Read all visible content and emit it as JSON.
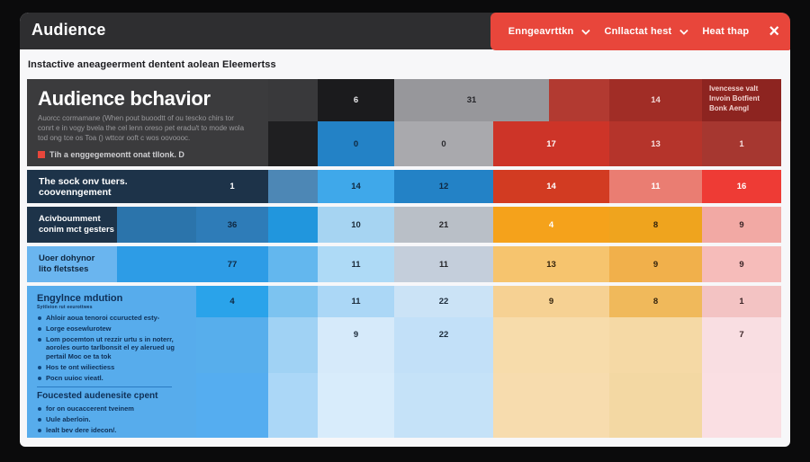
{
  "window": {
    "title": "Audience",
    "close_glyph": "×"
  },
  "toolbar": {
    "accent_red": "#e8463b",
    "buttons": [
      {
        "label": "Enngeavrttkn",
        "has_dropdown": true
      },
      {
        "label": "Cnllactat hest",
        "has_dropdown": true
      },
      {
        "label": "Heat thap",
        "has_dropdown": false
      }
    ]
  },
  "subtitle": "Instactive aneageerment dentent aolean Eleemertss",
  "heatmap": {
    "band1": {
      "panel": {
        "title": "Audience bchavior",
        "body": "Auorcc cormamane (When pout buoodtt of ou tescko chirs tor conrt e in vogy bvela the cel lenn oreso pet eradu/t to mode wola tod ong tce os Toa () wttcor ooft c wos oovoooc.",
        "note": "Tih a enggegemeontt onat tllonk. D"
      },
      "r1": [
        {
          "v": "6",
          "bg": "#1b1b1d",
          "fg": "#e8e8ea"
        },
        {
          "v": "31",
          "bg": "#97979b",
          "fg": "#26262a"
        },
        {
          "v": "",
          "bg": "#b23a31",
          "fg": "#ffffff"
        },
        {
          "v": "14",
          "bg": "#a12d26",
          "fg": "#f2d7d5"
        },
        {
          "v": "Ivencesse valt Invoin Botfient Bonk Aengl",
          "bg": "#8d2420",
          "fg": "#f3d3d0"
        }
      ],
      "r2": [
        {
          "v": "0",
          "bg": "#2382c6",
          "fg": "#10283e"
        },
        {
          "v": "0",
          "bg": "#a9a9ad",
          "fg": "#2a2a2e"
        },
        {
          "v": "17",
          "bg": "#cd3428",
          "fg": "#ffffff"
        },
        {
          "v": "13",
          "bg": "#b5342b",
          "fg": "#f6dedd"
        },
        {
          "v": "1",
          "bg": "#a63730",
          "fg": "#f6dedd"
        }
      ]
    },
    "row2": {
      "label": "The sock onv tuers. coovenngement",
      "label_bg": "#1d3349",
      "label_fg": "#ffffff",
      "cells": [
        {
          "v": "1",
          "bg": "#1d3349",
          "fg": "#ffffff"
        },
        {
          "v": "",
          "bg": "#4d87b5",
          "fg": "#ffffff"
        },
        {
          "v": "14",
          "bg": "#3fa8ea",
          "fg": "#10283e"
        },
        {
          "v": "12",
          "bg": "#2382c6",
          "fg": "#0f2740"
        },
        {
          "v": "14",
          "bg": "#d23b22",
          "fg": "#ffffff"
        },
        {
          "v": "11",
          "bg": "#ea7d72",
          "fg": "#ffffff"
        },
        {
          "v": "16",
          "bg": "#ee3b35",
          "fg": "#ffffff"
        }
      ]
    },
    "row3": {
      "label_line1": "Acivboumment",
      "label_line2": "conim mct gesters",
      "label_bg": "#1d3349",
      "label_fg": "#ffffff",
      "cells": [
        {
          "v": "",
          "bg": "#2b74ab",
          "fg": "#ffffff"
        },
        {
          "v": "36",
          "bg": "#2e7cb8",
          "fg": "#0f2740"
        },
        {
          "v": "",
          "bg": "#2196dd",
          "fg": "#ffffff"
        },
        {
          "v": "10",
          "bg": "#a6d4f2",
          "fg": "#1c2b3a"
        },
        {
          "v": "21",
          "bg": "#b9bfc7",
          "fg": "#26262a"
        },
        {
          "v": "4",
          "bg": "#f5a21b",
          "fg": "#ffffff"
        },
        {
          "v": "8",
          "bg": "#efa41e",
          "fg": "#33230d"
        },
        {
          "v": "9",
          "bg": "#f2a9a4",
          "fg": "#3a2426"
        }
      ]
    },
    "row4": {
      "label_line1": "Uoer dohynor",
      "label_line2": "lito fletstses",
      "label_bg": "#6ab5ef",
      "label_fg": "#0f2740",
      "cells": [
        {
          "v": "",
          "bg": "#2d9ce6",
          "fg": "#ffffff"
        },
        {
          "v": "77",
          "bg": "#2d9ce6",
          "fg": "#0f2740"
        },
        {
          "v": "",
          "bg": "#63b7ee",
          "fg": "#ffffff"
        },
        {
          "v": "11",
          "bg": "#aedaf6",
          "fg": "#1c2b3a"
        },
        {
          "v": "11",
          "bg": "#c4cedb",
          "fg": "#26262a"
        },
        {
          "v": "13",
          "bg": "#f6c46e",
          "fg": "#33230d"
        },
        {
          "v": "9",
          "bg": "#f1b04b",
          "fg": "#33230d"
        },
        {
          "v": "9",
          "bg": "#f6bcba",
          "fg": "#3a2426"
        }
      ]
    },
    "band5": {
      "label": {
        "bg": "#57acec",
        "fg": "#0f3057",
        "title": "Engylnce mdution",
        "subtext": "Syttleion rut eeurottwes",
        "bullets1": [
          "Ahloir aoua tenoroi ccuructed esty-",
          "Lorge eosewlurotew",
          "Lom pocemton ut rezzir urtu s in noterr, aoroles ourto tarlbonsit el ey alerued ug pertail Moc oe ta tok",
          "Hos te ont wiliectiess",
          "Pocn uuioc vieatl."
        ],
        "title2": "Foucested audenesite cpent",
        "bullets2": [
          "for on oucaccerent tveinem",
          "Uule aberloin.",
          "lealt bev dere idecon/."
        ]
      },
      "r1": [
        {
          "v": "4",
          "bg": "#2aa3ea",
          "fg": "#0f2740"
        },
        {
          "v": "",
          "bg": "#7cc3f0",
          "fg": "#ffffff"
        },
        {
          "v": "11",
          "bg": "#abd7f6",
          "fg": "#1c2b3a"
        },
        {
          "v": "22",
          "bg": "#cbe3f6",
          "fg": "#1c2b3a"
        },
        {
          "v": "9",
          "bg": "#f6d193",
          "fg": "#33230d"
        },
        {
          "v": "8",
          "bg": "#f0b95b",
          "fg": "#33230d"
        },
        {
          "v": "1",
          "bg": "#f3c3c3",
          "fg": "#3a2426"
        }
      ],
      "r2": [
        {
          "v": "",
          "bg": "#57aeec",
          "fg": "#ffffff"
        },
        {
          "v": "",
          "bg": "#a0d2f4",
          "fg": "#ffffff"
        },
        {
          "v": "9",
          "bg": "#d6eafa",
          "fg": "#1c2b3a"
        },
        {
          "v": "22",
          "bg": "#c2e0f8",
          "fg": "#1c2b3a"
        },
        {
          "v": "",
          "bg": "#f7dcab",
          "fg": "#ffffff"
        },
        {
          "v": "",
          "bg": "#f5d9a5",
          "fg": "#ffffff"
        },
        {
          "v": "7",
          "bg": "#f9dee2",
          "fg": "#3a2426"
        }
      ],
      "r3": [
        {
          "v": "",
          "bg": "#55adf0",
          "fg": "#ffffff"
        },
        {
          "v": "",
          "bg": "#abd7f7",
          "fg": "#ffffff"
        },
        {
          "v": "",
          "bg": "#d8ecfb",
          "fg": "#ffffff"
        },
        {
          "v": "",
          "bg": "#c5e2f8",
          "fg": "#ffffff"
        },
        {
          "v": "",
          "bg": "#f7dcae",
          "fg": "#ffffff"
        },
        {
          "v": "",
          "bg": "#f3d8a3",
          "fg": "#ffffff"
        },
        {
          "v": "",
          "bg": "#fadfe3",
          "fg": "#ffffff"
        }
      ]
    }
  }
}
